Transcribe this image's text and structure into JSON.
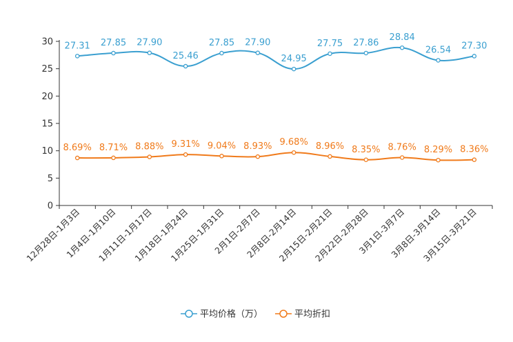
{
  "chart_data": {
    "type": "line",
    "categories": [
      "12月28日-1月3日",
      "1月4日-1月10日",
      "1月11日-1月17日",
      "1月18日-1月24日",
      "1月25日-1月31日",
      "2月1日-2月7日",
      "2月8日-2月14日",
      "2月15日-2月21日",
      "2月22日-2月28日",
      "3月1日-3月7日",
      "3月8日-3月14日",
      "3月15日-3月21日"
    ],
    "ylim": [
      0,
      30
    ],
    "yticks": [
      0,
      5,
      10,
      15,
      20,
      25,
      30
    ],
    "series": [
      {
        "name": "平均价格（万）",
        "color": "#3a9fd0",
        "values": [
          27.31,
          27.85,
          27.9,
          25.46,
          27.85,
          27.9,
          24.95,
          27.75,
          27.86,
          28.84,
          26.54,
          27.3
        ],
        "labels": [
          "27.31",
          "27.85",
          "27.90",
          "25.46",
          "27.85",
          "27.90",
          "24.95",
          "27.75",
          "27.86",
          "28.84",
          "26.54",
          "27.30"
        ]
      },
      {
        "name": "平均折扣",
        "color": "#f07a1a",
        "values": [
          8.69,
          8.71,
          8.88,
          9.31,
          9.04,
          8.93,
          9.68,
          8.96,
          8.35,
          8.76,
          8.29,
          8.36
        ],
        "labels": [
          "8.69%",
          "8.71%",
          "8.88%",
          "9.31%",
          "9.04%",
          "8.93%",
          "9.68%",
          "8.96%",
          "8.35%",
          "8.76%",
          "8.29%",
          "8.36%"
        ]
      }
    ],
    "legend": "bottom-center"
  }
}
